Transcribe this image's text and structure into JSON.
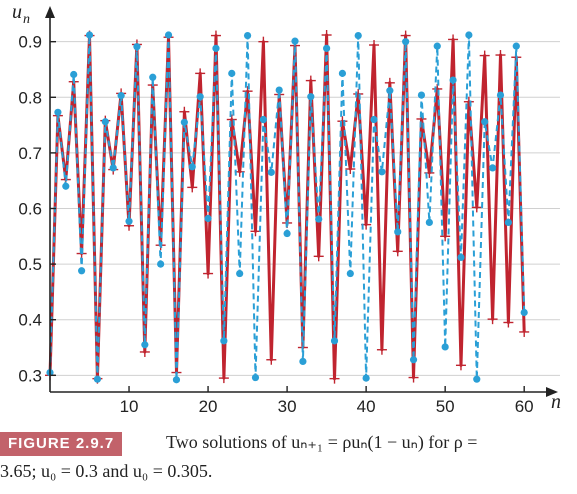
{
  "chart_data": {
    "type": "line",
    "xlabel": "n",
    "ylabel_main": "u",
    "ylabel_sub": "n",
    "xlim": [
      0,
      62
    ],
    "ylim": [
      0.27,
      0.93
    ],
    "xticks": [
      10,
      20,
      30,
      40,
      50,
      60
    ],
    "yticks": [
      0.3,
      0.4,
      0.5,
      0.6,
      0.7,
      0.8,
      0.9
    ],
    "ytick_labels": [
      "0.3",
      "0.4",
      "0.5",
      "0.6",
      "0.7",
      "0.8",
      "0.9"
    ],
    "series": [
      {
        "color": "#c0242f",
        "style": "solid",
        "marker": "plus",
        "x": [
          0,
          1,
          2,
          3,
          4,
          5,
          6,
          7,
          8,
          9,
          10,
          11,
          12,
          13,
          14,
          15,
          16,
          17,
          18,
          19,
          20,
          21,
          22,
          23,
          24,
          25,
          26,
          27,
          28,
          29,
          30,
          31,
          32,
          33,
          34,
          35,
          36,
          37,
          38,
          39,
          40,
          41,
          42,
          43,
          44,
          45,
          46,
          47,
          48,
          49,
          50,
          51,
          52,
          53,
          54,
          55,
          56,
          57,
          58,
          59,
          60
        ],
        "values": [
          0.3,
          0.767,
          0.652,
          0.828,
          0.519,
          0.911,
          0.294,
          0.758,
          0.67,
          0.807,
          0.569,
          0.895,
          0.342,
          0.822,
          0.534,
          0.908,
          0.305,
          0.774,
          0.638,
          0.843,
          0.483,
          0.911,
          0.295,
          0.76,
          0.666,
          0.811,
          0.559,
          0.9,
          0.328,
          0.805,
          0.574,
          0.893,
          0.35,
          0.83,
          0.514,
          0.912,
          0.294,
          0.757,
          0.671,
          0.806,
          0.571,
          0.894,
          0.346,
          0.826,
          0.523,
          0.911,
          0.296,
          0.761,
          0.664,
          0.815,
          0.55,
          0.904,
          0.318,
          0.792,
          0.602,
          0.875,
          0.401,
          0.876,
          0.395,
          0.872,
          0.378
        ]
      },
      {
        "color": "#2a9fd6",
        "style": "dashed",
        "marker": "dot",
        "x": [
          0,
          1,
          2,
          3,
          4,
          5,
          6,
          7,
          8,
          9,
          10,
          11,
          12,
          13,
          14,
          15,
          16,
          17,
          18,
          19,
          20,
          21,
          22,
          23,
          24,
          25,
          26,
          27,
          28,
          29,
          30,
          31,
          32,
          33,
          34,
          35,
          36,
          37,
          38,
          39,
          40,
          41,
          42,
          43,
          44,
          45,
          46,
          47,
          48,
          49,
          50,
          51,
          52,
          53,
          54,
          55,
          56,
          57,
          58,
          59,
          60
        ],
        "values": [
          0.305,
          0.773,
          0.64,
          0.841,
          0.488,
          0.912,
          0.293,
          0.756,
          0.673,
          0.803,
          0.577,
          0.891,
          0.355,
          0.836,
          0.5,
          0.912,
          0.292,
          0.755,
          0.675,
          0.801,
          0.582,
          0.888,
          0.362,
          0.843,
          0.483,
          0.911,
          0.296,
          0.76,
          0.665,
          0.813,
          0.555,
          0.901,
          0.325,
          0.801,
          0.581,
          0.888,
          0.362,
          0.843,
          0.483,
          0.911,
          0.295,
          0.76,
          0.666,
          0.812,
          0.558,
          0.9,
          0.328,
          0.804,
          0.575,
          0.892,
          0.351,
          0.831,
          0.512,
          0.912,
          0.293,
          0.756,
          0.673,
          0.804,
          0.575,
          0.892,
          0.413
        ]
      }
    ]
  },
  "caption": {
    "badge": "FIGURE 2.9.7",
    "line1": "Two solutions of uₙ₊₁ = ρuₙ(1 − uₙ) for ρ =",
    "line2": "3.65; u₀ = 0.3 and u₀ = 0.305."
  }
}
